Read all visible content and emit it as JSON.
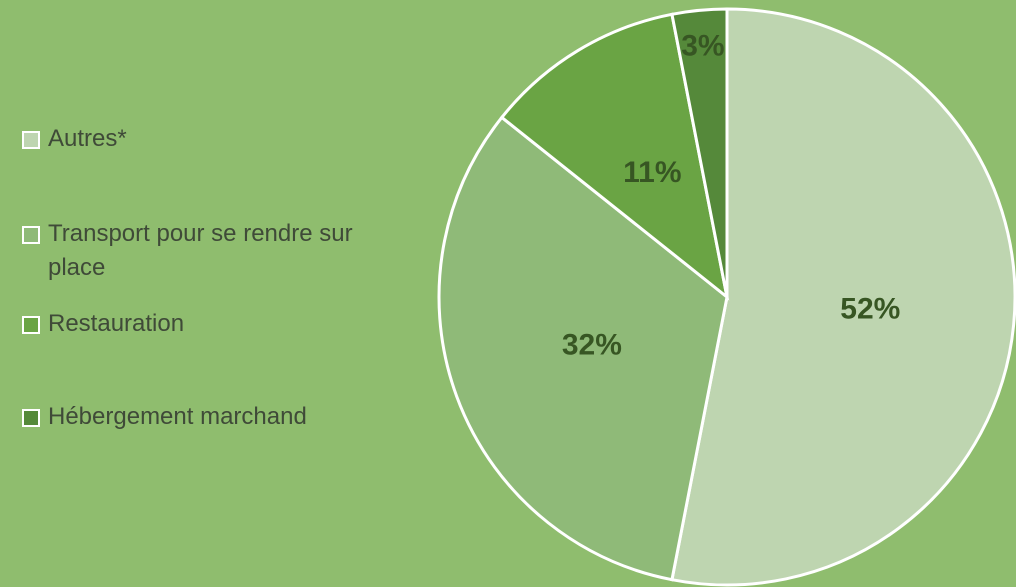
{
  "chart_data": {
    "type": "pie",
    "categories": [
      "Autres*",
      "Transport pour se rendre sur place",
      "Restauration",
      "Hébergement marchand"
    ],
    "values": [
      52,
      32,
      11,
      3
    ],
    "value_labels": [
      "52%",
      "32%",
      "11%",
      "3%"
    ],
    "colors": [
      "#bed5b0",
      "#8fba78",
      "#6aa444",
      "#55893a"
    ]
  }
}
